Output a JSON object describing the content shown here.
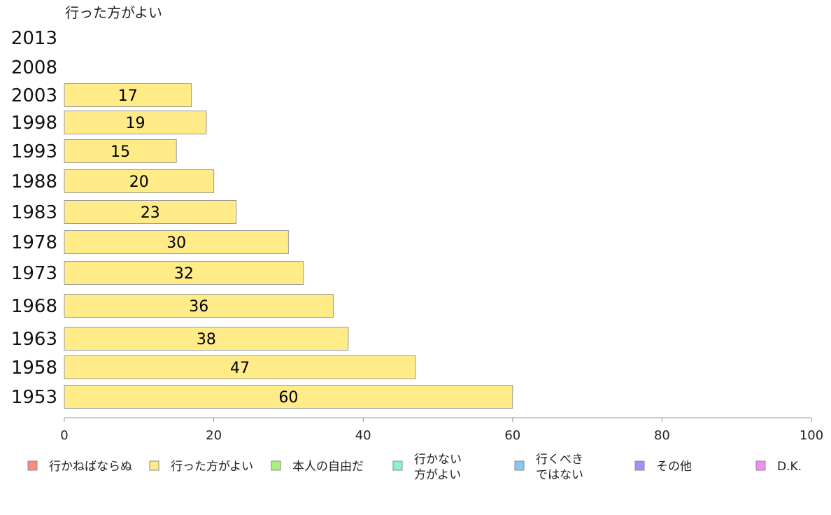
{
  "chart_data": {
    "type": "bar",
    "orientation": "horizontal",
    "title": "行った方がよい",
    "categories": [
      "2013",
      "2008",
      "2003",
      "1998",
      "1993",
      "1988",
      "1983",
      "1978",
      "1973",
      "1968",
      "1963",
      "1958",
      "1953"
    ],
    "values": [
      null,
      null,
      17,
      19,
      15,
      20,
      23,
      30,
      32,
      36,
      38,
      47,
      60
    ],
    "value_labels": [
      "",
      "",
      "17",
      "19",
      "15",
      "20",
      "23",
      "30",
      "32",
      "36",
      "38",
      "47",
      "60"
    ],
    "xlim": [
      0,
      100
    ],
    "xticks": [
      "0",
      "20",
      "40",
      "60",
      "80",
      "100"
    ],
    "bar_color": "#ffeb88",
    "bar_stroke": "#9a9a9a",
    "grid": false,
    "legend_placement": "bottom",
    "legend": [
      {
        "lines": [
          "行かねばならぬ"
        ],
        "color": "#ff8a80"
      },
      {
        "lines": [
          "行った方がよい"
        ],
        "color": "#ffeb88"
      },
      {
        "lines": [
          "本人の自由だ"
        ],
        "color": "#a6f27a"
      },
      {
        "lines": [
          "行かない",
          "方がよい"
        ],
        "color": "#8cf5c8"
      },
      {
        "lines": [
          "行くべき",
          "ではない"
        ],
        "color": "#86c8f5"
      },
      {
        "lines": [
          "その他"
        ],
        "color": "#a98cf5"
      },
      {
        "lines": [
          "D.K."
        ],
        "color": "#f58cf0"
      }
    ]
  }
}
